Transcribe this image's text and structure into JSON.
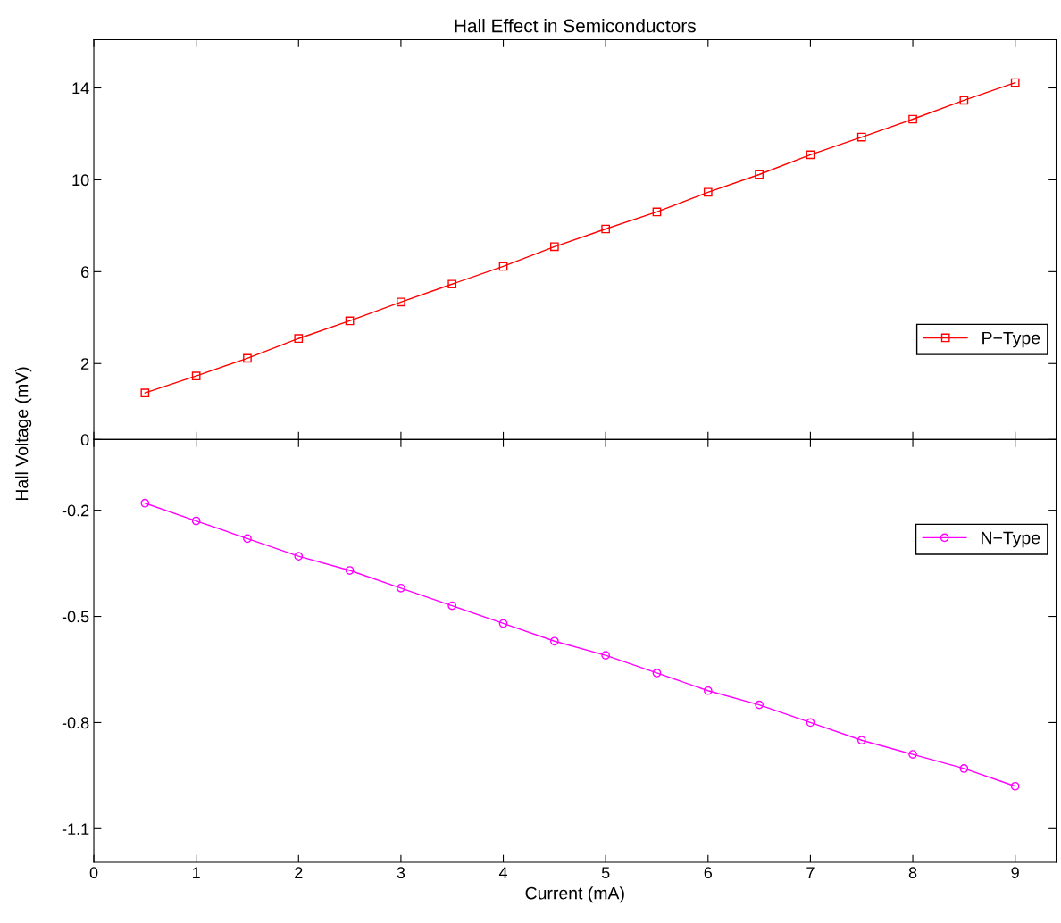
{
  "chart_data": [
    {
      "type": "line",
      "title": "Hall Effect in Semiconductors",
      "ylabel": "Hall Voltage (mV)",
      "x": [
        0.5,
        1,
        1.5,
        2,
        2.5,
        3,
        3.5,
        4,
        4.5,
        5,
        5.5,
        6,
        6.5,
        7,
        7.5,
        8,
        8.5,
        9
      ],
      "series": [
        {
          "name": "P−Type",
          "color": "#ff0000",
          "marker": "square",
          "values": [
            0.72,
            1.46,
            2.23,
            3.09,
            3.86,
            4.68,
            5.46,
            6.23,
            7.09,
            7.86,
            8.6,
            9.46,
            10.23,
            11.09,
            11.86,
            12.64,
            13.46,
            14.23
          ]
        }
      ],
      "xlim": [
        0,
        9.4
      ],
      "xticks": [
        0,
        1,
        2,
        3,
        4,
        5,
        6,
        7,
        8,
        9
      ],
      "ylim": [
        -1.3,
        16.1
      ],
      "yticks": [
        2,
        6,
        10,
        14
      ],
      "tick_labels": "y",
      "legend": "right",
      "grid": false
    },
    {
      "type": "line",
      "xlabel": "Current (mA)",
      "x": [
        0.5,
        1,
        1.5,
        2,
        2.5,
        3,
        3.5,
        4,
        4.5,
        5,
        5.5,
        6,
        6.5,
        7,
        7.5,
        8,
        8.5,
        9
      ],
      "series": [
        {
          "name": "N−Type",
          "color": "#ff00ff",
          "marker": "circle",
          "values": [
            -0.18,
            -0.23,
            -0.28,
            -0.33,
            -0.37,
            -0.42,
            -0.47,
            -0.52,
            -0.57,
            -0.61,
            -0.66,
            -0.71,
            -0.75,
            -0.8,
            -0.85,
            -0.89,
            -0.93,
            -0.98
          ]
        }
      ],
      "xlim": [
        0,
        9.4
      ],
      "xticks": [
        0,
        1,
        2,
        3,
        4,
        5,
        6,
        7,
        8,
        9
      ],
      "ylim": [
        -1.195,
        0
      ],
      "yticks": [
        -1.1,
        -0.8,
        -0.5,
        -0.2,
        0
      ],
      "legend": "top right",
      "grid": false
    }
  ]
}
